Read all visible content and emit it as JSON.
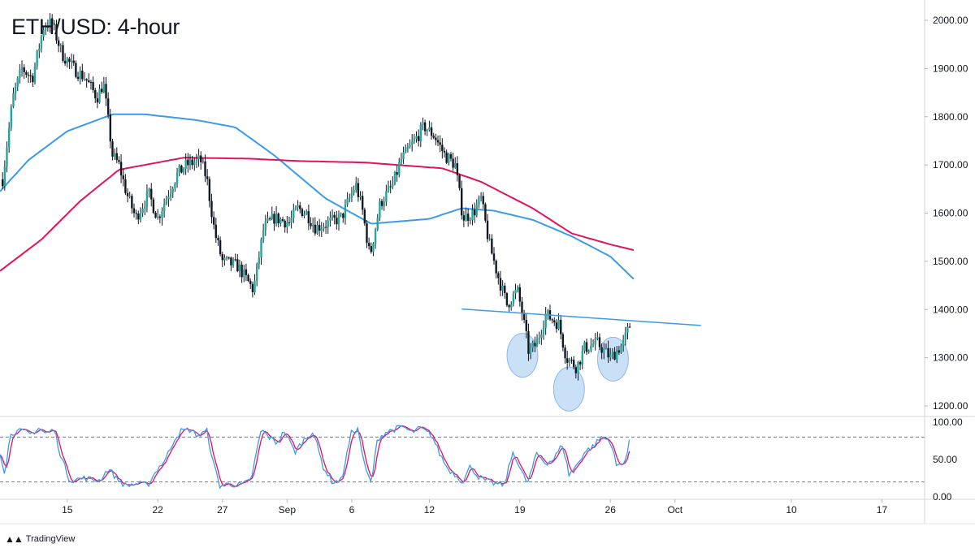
{
  "header": {
    "title": "ETH/USD: 4-hour"
  },
  "brand": {
    "icon": "tradingview-logo-icon",
    "label": "TradingView"
  },
  "colors": {
    "candle_up": "#26a69a",
    "candle_down": "#131722",
    "ma_fast": "#3d9ae8",
    "ma_slow": "#e0135f",
    "trendline": "#3d9ae8",
    "stoch_k": "#3d9ae8",
    "stoch_d": "#e0135f",
    "highlight": "#9ec6f0"
  },
  "chart_data": [
    {
      "type": "candlestick",
      "title": "ETH/USD: 4-hour",
      "ylim": [
        1180,
        2040
      ],
      "y_ticks": [
        "2000.00",
        "1900.00",
        "1800.00",
        "1700.00",
        "1600.00",
        "1500.00",
        "1400.00",
        "1300.00",
        "1200.00"
      ],
      "y_tick_values": [
        2000,
        1900,
        1800,
        1700,
        1600,
        1500,
        1400,
        1300,
        1200
      ],
      "x_ticks": [
        {
          "label": "15",
          "day": 15
        },
        {
          "label": "22",
          "day": 22
        },
        {
          "label": "27",
          "day": 27
        },
        {
          "label": "Sep",
          "day": 32
        },
        {
          "label": "6",
          "day": 37
        },
        {
          "label": "12",
          "day": 43
        },
        {
          "label": "19",
          "day": 50
        },
        {
          "label": "26",
          "day": 57
        },
        {
          "label": "Oct",
          "day": 62
        },
        {
          "label": "10",
          "day": 71
        },
        {
          "label": "17",
          "day": 78
        }
      ],
      "x_range_days": [
        9.8,
        81.3
      ],
      "close_keypoints": [
        [
          10.0,
          1670
        ],
        [
          10.8,
          1840
        ],
        [
          11.5,
          1900
        ],
        [
          12.3,
          1880
        ],
        [
          13.2,
          1990
        ],
        [
          13.8,
          1995
        ],
        [
          14.6,
          1930
        ],
        [
          15.5,
          1900
        ],
        [
          16.4,
          1880
        ],
        [
          17.3,
          1840
        ],
        [
          17.8,
          1870
        ],
        [
          18.5,
          1720
        ],
        [
          19.0,
          1700
        ],
        [
          19.6,
          1640
        ],
        [
          20.3,
          1590
        ],
        [
          21.3,
          1640
        ],
        [
          22.0,
          1590
        ],
        [
          22.8,
          1640
        ],
        [
          23.5,
          1680
        ],
        [
          24.2,
          1700
        ],
        [
          25.3,
          1710
        ],
        [
          25.8,
          1670
        ],
        [
          26.4,
          1560
        ],
        [
          27.0,
          1500
        ],
        [
          28.2,
          1490
        ],
        [
          29.4,
          1440
        ],
        [
          30.2,
          1570
        ],
        [
          31.0,
          1590
        ],
        [
          32.2,
          1580
        ],
        [
          32.8,
          1610
        ],
        [
          33.5,
          1600
        ],
        [
          34.2,
          1570
        ],
        [
          35.2,
          1580
        ],
        [
          36.2,
          1590
        ],
        [
          37.3,
          1660
        ],
        [
          37.8,
          1610
        ],
        [
          38.4,
          1510
        ],
        [
          39.2,
          1620
        ],
        [
          40.2,
          1660
        ],
        [
          40.8,
          1710
        ],
        [
          41.6,
          1740
        ],
        [
          42.6,
          1780
        ],
        [
          43.4,
          1760
        ],
        [
          44.2,
          1720
        ],
        [
          45.0,
          1700
        ],
        [
          45.6,
          1590
        ],
        [
          46.4,
          1600
        ],
        [
          47.0,
          1630
        ],
        [
          47.6,
          1540
        ],
        [
          48.3,
          1470
        ],
        [
          49.0,
          1410
        ],
        [
          49.8,
          1440
        ],
        [
          50.2,
          1390
        ],
        [
          50.7,
          1310
        ],
        [
          51.3,
          1330
        ],
        [
          52.0,
          1390
        ],
        [
          53.0,
          1370
        ],
        [
          53.6,
          1300
        ],
        [
          54.4,
          1280
        ],
        [
          55.0,
          1320
        ],
        [
          56.0,
          1330
        ],
        [
          57.0,
          1300
        ],
        [
          58.0,
          1330
        ],
        [
          58.6,
          1375
        ]
      ],
      "overlays": [
        {
          "type": "line",
          "color_key": "ma_fast",
          "points": [
            [
              9.8,
              1645
            ],
            [
              12,
              1710
            ],
            [
              15,
              1770
            ],
            [
              18.5,
              1805
            ],
            [
              21,
              1805
            ],
            [
              25,
              1793
            ],
            [
              28,
              1778
            ],
            [
              31,
              1720
            ],
            [
              35,
              1630
            ],
            [
              38.5,
              1578
            ],
            [
              43,
              1588
            ],
            [
              45.5,
              1610
            ],
            [
              48,
              1605
            ],
            [
              51,
              1586
            ],
            [
              54,
              1552
            ],
            [
              57,
              1510
            ],
            [
              59,
              1458
            ]
          ]
        },
        {
          "type": "line",
          "color_key": "ma_slow",
          "points": [
            [
              9.8,
              1480
            ],
            [
              13,
              1545
            ],
            [
              16,
              1625
            ],
            [
              19,
              1690
            ],
            [
              24,
              1715
            ],
            [
              29,
              1713
            ],
            [
              33,
              1708
            ],
            [
              38,
              1705
            ],
            [
              44,
              1693
            ],
            [
              47,
              1665
            ],
            [
              51,
              1610
            ],
            [
              54,
              1558
            ],
            [
              57,
              1535
            ],
            [
              59,
              1522
            ]
          ]
        },
        {
          "type": "trendline",
          "color_key": "trendline",
          "points": [
            [
              45.5,
              1401
            ],
            [
              64,
              1367
            ]
          ]
        },
        {
          "type": "highlight-circles",
          "circles": [
            [
              50.2,
              1305
            ],
            [
              53.8,
              1235
            ],
            [
              57.2,
              1297
            ]
          ]
        }
      ]
    },
    {
      "type": "line",
      "name": "stochastic",
      "ylim": [
        -5,
        110
      ],
      "y_ticks": [
        "100.00",
        "50.00",
        "0.00"
      ],
      "y_tick_values": [
        100,
        50,
        0
      ],
      "levels": [
        80,
        20
      ],
      "k_keypoints": [
        [
          9.8,
          60
        ],
        [
          10.2,
          30
        ],
        [
          10.6,
          86
        ],
        [
          11.5,
          88
        ],
        [
          12.2,
          84
        ],
        [
          12.8,
          92
        ],
        [
          13.3,
          85
        ],
        [
          14.0,
          90
        ],
        [
          14.5,
          55
        ],
        [
          15.2,
          22
        ],
        [
          16.3,
          25
        ],
        [
          17.5,
          22
        ],
        [
          18.2,
          38
        ],
        [
          18.8,
          25
        ],
        [
          19.5,
          15
        ],
        [
          20.5,
          18
        ],
        [
          21.2,
          15
        ],
        [
          22.0,
          38
        ],
        [
          22.6,
          50
        ],
        [
          23.3,
          78
        ],
        [
          23.8,
          88
        ],
        [
          24.5,
          90
        ],
        [
          25.1,
          82
        ],
        [
          25.8,
          88
        ],
        [
          26.3,
          45
        ],
        [
          26.8,
          15
        ],
        [
          27.5,
          17
        ],
        [
          28.5,
          16
        ],
        [
          29.2,
          22
        ],
        [
          30.0,
          90
        ],
        [
          30.6,
          80
        ],
        [
          31.2,
          72
        ],
        [
          31.8,
          88
        ],
        [
          32.6,
          60
        ],
        [
          33.3,
          76
        ],
        [
          34.0,
          88
        ],
        [
          34.8,
          40
        ],
        [
          35.5,
          20
        ],
        [
          36.2,
          22
        ],
        [
          37.0,
          88
        ],
        [
          37.5,
          90
        ],
        [
          38.0,
          40
        ],
        [
          38.5,
          18
        ],
        [
          39.0,
          78
        ],
        [
          39.6,
          86
        ],
        [
          40.2,
          90
        ],
        [
          41.0,
          94
        ],
        [
          41.6,
          86
        ],
        [
          42.3,
          92
        ],
        [
          43.2,
          82
        ],
        [
          43.8,
          58
        ],
        [
          44.4,
          38
        ],
        [
          45.0,
          30
        ],
        [
          45.6,
          20
        ],
        [
          46.2,
          42
        ],
        [
          46.7,
          28
        ],
        [
          47.3,
          22
        ],
        [
          48.0,
          18
        ],
        [
          48.8,
          16
        ],
        [
          49.5,
          62
        ],
        [
          50.0,
          38
        ],
        [
          50.6,
          18
        ],
        [
          51.3,
          58
        ],
        [
          52.0,
          45
        ],
        [
          52.6,
          50
        ],
        [
          53.3,
          70
        ],
        [
          53.8,
          30
        ],
        [
          54.3,
          40
        ],
        [
          55.0,
          60
        ],
        [
          55.7,
          68
        ],
        [
          56.3,
          80
        ],
        [
          57.0,
          75
        ],
        [
          57.5,
          40
        ],
        [
          58.2,
          50
        ],
        [
          58.6,
          84
        ]
      ]
    }
  ]
}
